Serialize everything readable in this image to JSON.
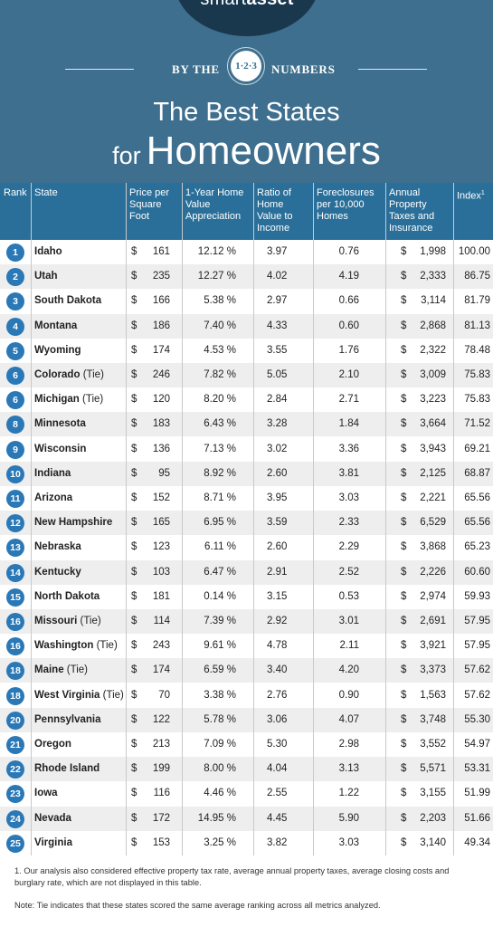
{
  "brand": {
    "name_light": "smart",
    "name_bold": "asset"
  },
  "banner": {
    "left": "BY THE",
    "badge": "1·2·3",
    "right": "NUMBERS"
  },
  "title": {
    "line1": "The Best States",
    "line2_small": "for",
    "line2_big": "Homeowners"
  },
  "columns": {
    "rank": "Rank",
    "state": "State",
    "price": "Price per Square Foot",
    "appreciation": "1-Year Home Value Appreciation",
    "ratio": "Ratio of Home Value to Income",
    "foreclosures": "Foreclosures per 10,000 Homes",
    "taxes": "Annual Property Taxes and Insurance",
    "index": "Index",
    "index_mark": "1"
  },
  "rows": [
    {
      "rank": "1",
      "state": "Idaho",
      "tie": "",
      "price": "161",
      "appr": "12.12 %",
      "ratio": "3.97",
      "fore": "0.76",
      "tax": "1,998",
      "index": "100.00"
    },
    {
      "rank": "2",
      "state": "Utah",
      "tie": "",
      "price": "235",
      "appr": "12.27 %",
      "ratio": "4.02",
      "fore": "4.19",
      "tax": "2,333",
      "index": "86.75"
    },
    {
      "rank": "3",
      "state": "South Dakota",
      "tie": "",
      "price": "166",
      "appr": "5.38 %",
      "ratio": "2.97",
      "fore": "0.66",
      "tax": "3,114",
      "index": "81.79"
    },
    {
      "rank": "4",
      "state": "Montana",
      "tie": "",
      "price": "186",
      "appr": "7.40 %",
      "ratio": "4.33",
      "fore": "0.60",
      "tax": "2,868",
      "index": "81.13"
    },
    {
      "rank": "5",
      "state": "Wyoming",
      "tie": "",
      "price": "174",
      "appr": "4.53 %",
      "ratio": "3.55",
      "fore": "1.76",
      "tax": "2,322",
      "index": "78.48"
    },
    {
      "rank": "6",
      "state": "Colorado",
      "tie": "(Tie)",
      "price": "246",
      "appr": "7.82 %",
      "ratio": "5.05",
      "fore": "2.10",
      "tax": "3,009",
      "index": "75.83"
    },
    {
      "rank": "6",
      "state": "Michigan",
      "tie": "(Tie)",
      "price": "120",
      "appr": "8.20 %",
      "ratio": "2.84",
      "fore": "2.71",
      "tax": "3,223",
      "index": "75.83"
    },
    {
      "rank": "8",
      "state": "Minnesota",
      "tie": "",
      "price": "183",
      "appr": "6.43 %",
      "ratio": "3.28",
      "fore": "1.84",
      "tax": "3,664",
      "index": "71.52"
    },
    {
      "rank": "9",
      "state": "Wisconsin",
      "tie": "",
      "price": "136",
      "appr": "7.13 %",
      "ratio": "3.02",
      "fore": "3.36",
      "tax": "3,943",
      "index": "69.21"
    },
    {
      "rank": "10",
      "state": "Indiana",
      "tie": "",
      "price": "95",
      "appr": "8.92 %",
      "ratio": "2.60",
      "fore": "3.81",
      "tax": "2,125",
      "index": "68.87"
    },
    {
      "rank": "11",
      "state": "Arizona",
      "tie": "",
      "price": "152",
      "appr": "8.71 %",
      "ratio": "3.95",
      "fore": "3.03",
      "tax": "2,221",
      "index": "65.56"
    },
    {
      "rank": "12",
      "state": "New Hampshire",
      "tie": "",
      "price": "165",
      "appr": "6.95 %",
      "ratio": "3.59",
      "fore": "2.33",
      "tax": "6,529",
      "index": "65.56"
    },
    {
      "rank": "13",
      "state": "Nebraska",
      "tie": "",
      "price": "123",
      "appr": "6.11 %",
      "ratio": "2.60",
      "fore": "2.29",
      "tax": "3,868",
      "index": "65.23"
    },
    {
      "rank": "14",
      "state": "Kentucky",
      "tie": "",
      "price": "103",
      "appr": "6.47 %",
      "ratio": "2.91",
      "fore": "2.52",
      "tax": "2,226",
      "index": "60.60"
    },
    {
      "rank": "15",
      "state": "North Dakota",
      "tie": "",
      "price": "181",
      "appr": "0.14 %",
      "ratio": "3.15",
      "fore": "0.53",
      "tax": "2,974",
      "index": "59.93"
    },
    {
      "rank": "16",
      "state": "Missouri",
      "tie": "(Tie)",
      "price": "114",
      "appr": "7.39 %",
      "ratio": "2.92",
      "fore": "3.01",
      "tax": "2,691",
      "index": "57.95"
    },
    {
      "rank": "16",
      "state": "Washington",
      "tie": "(Tie)",
      "price": "243",
      "appr": "9.61 %",
      "ratio": "4.78",
      "fore": "2.11",
      "tax": "3,921",
      "index": "57.95"
    },
    {
      "rank": "18",
      "state": "Maine",
      "tie": "(Tie)",
      "price": "174",
      "appr": "6.59 %",
      "ratio": "3.40",
      "fore": "4.20",
      "tax": "3,373",
      "index": "57.62"
    },
    {
      "rank": "18",
      "state": "West Virginia",
      "tie": "(Tie)",
      "price": "70",
      "appr": "3.38 %",
      "ratio": "2.76",
      "fore": "0.90",
      "tax": "1,563",
      "index": "57.62"
    },
    {
      "rank": "20",
      "state": "Pennsylvania",
      "tie": "",
      "price": "122",
      "appr": "5.78 %",
      "ratio": "3.06",
      "fore": "4.07",
      "tax": "3,748",
      "index": "55.30"
    },
    {
      "rank": "21",
      "state": "Oregon",
      "tie": "",
      "price": "213",
      "appr": "7.09 %",
      "ratio": "5.30",
      "fore": "2.98",
      "tax": "3,552",
      "index": "54.97"
    },
    {
      "rank": "22",
      "state": "Rhode Island",
      "tie": "",
      "price": "199",
      "appr": "8.00 %",
      "ratio": "4.04",
      "fore": "3.13",
      "tax": "5,571",
      "index": "53.31"
    },
    {
      "rank": "23",
      "state": "Iowa",
      "tie": "",
      "price": "116",
      "appr": "4.46 %",
      "ratio": "2.55",
      "fore": "1.22",
      "tax": "3,155",
      "index": "51.99"
    },
    {
      "rank": "24",
      "state": "Nevada",
      "tie": "",
      "price": "172",
      "appr": "14.95 %",
      "ratio": "4.45",
      "fore": "5.90",
      "tax": "2,203",
      "index": "51.66"
    },
    {
      "rank": "25",
      "state": "Virginia",
      "tie": "",
      "price": "153",
      "appr": "3.25 %",
      "ratio": "3.82",
      "fore": "3.03",
      "tax": "3,140",
      "index": "49.34"
    }
  ],
  "currency_symbol": "$",
  "footnote": "1. Our analysis also considered effective property tax rate, average annual property taxes, average closing costs and burglary rate, which are not displayed in this table.",
  "note": "Note: Tie indicates that these states scored the same average ranking across all metrics analyzed.",
  "colors": {
    "header_bg": "#3e6f8e",
    "logo_bg": "#19384e",
    "column_header_bg": "#2a6f99",
    "rank_badge": "#2a78b6",
    "row_alt": "#eeeeee"
  }
}
